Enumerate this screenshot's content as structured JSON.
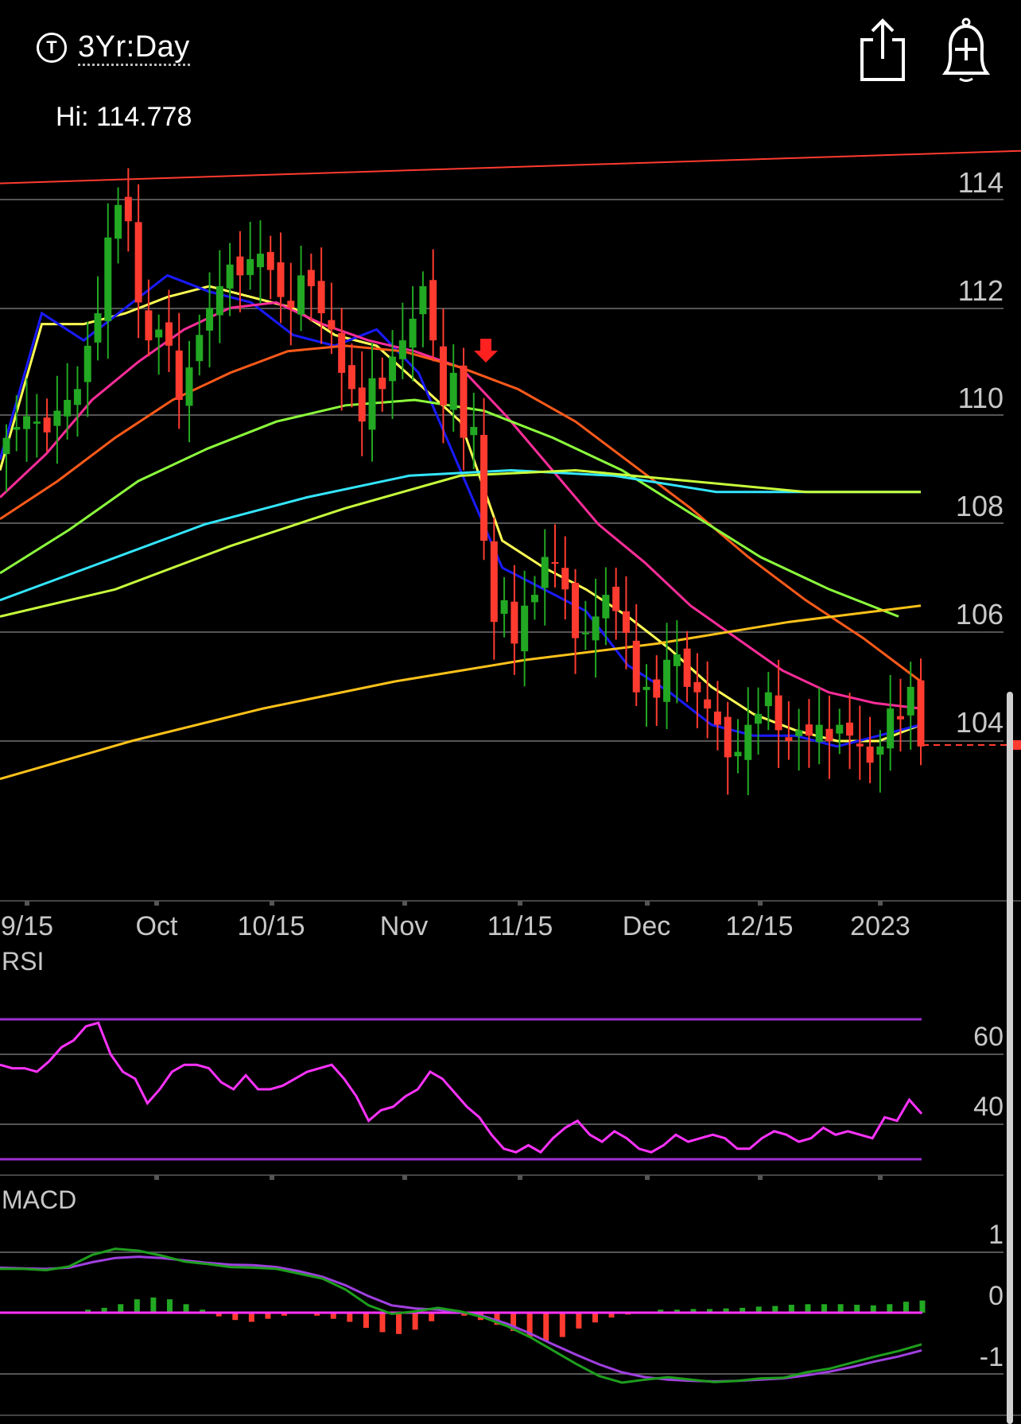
{
  "header": {
    "timeframe_icon_glyph": "T",
    "timeframe_label": "3Yr:Day",
    "share_icon": "share-icon",
    "alert_icon": "bell-plus-icon"
  },
  "price_panel": {
    "hi_label": "Hi: 114.778",
    "y_tick_labels": [
      "114",
      "112",
      "110",
      "108",
      "106",
      "104"
    ],
    "x_tick_labels": [
      "9/15",
      "Oct",
      "10/15",
      "Nov",
      "11/15",
      "Dec",
      "12/15",
      "2023"
    ],
    "last_price_marker": "dashed-red-line"
  },
  "rsi_panel": {
    "label": "RSI",
    "y_tick_labels": [
      "60",
      "40"
    ]
  },
  "macd_panel": {
    "label": "MACD",
    "y_tick_labels": [
      "1",
      "0",
      "-1"
    ]
  },
  "colors": {
    "background": "#000000",
    "up_candle": "#22a822",
    "down_candle": "#ff3b30",
    "trendline": "#ff3b30",
    "ema_fast": "#ffff55",
    "sma_fast": "#1a1aff",
    "ma_magenta": "#ff2d9a",
    "ma_orange": "#ff5a1a",
    "ma_lightgreen": "#8cff3c",
    "ma_cyan": "#33e6ff",
    "ma_yellowgreen": "#c8ff3c",
    "ma_gold": "#ffc21a",
    "rsi_line": "#ff33ff",
    "rsi_bounds": "#9b30d0",
    "macd_line": "#1e9e1e",
    "macd_signal": "#a040e0",
    "macd_zero": "#ff33ff"
  },
  "chart_data": [
    {
      "type": "candlestick",
      "title": "",
      "ylim": [
        101.5,
        115
      ],
      "y_ticks": [
        104,
        106,
        108,
        110,
        112,
        114
      ],
      "hi": 114.778,
      "x_labels": [
        "9/15",
        "Oct",
        "10/15",
        "Nov",
        "11/15",
        "Dec",
        "12/15",
        "2023"
      ],
      "candles_close": [
        109.6,
        109.8,
        110.0,
        109.9,
        109.7,
        110.1,
        110.3,
        110.5,
        111.3,
        111.9,
        113.3,
        113.9,
        113.6,
        112.1,
        111.4,
        111.6,
        111.3,
        110.3,
        110.9,
        111.5,
        112.0,
        112.4,
        112.8,
        112.6,
        112.9,
        113.0,
        112.7,
        112.2,
        112.0,
        112.6,
        112.4,
        111.9,
        111.6,
        110.8,
        110.5,
        109.9,
        110.7,
        110.5,
        111.1,
        111.4,
        111.8,
        112.4,
        111.4,
        110.2,
        110.8,
        109.6,
        109.8,
        107.7,
        106.2,
        106.6,
        105.8,
        106.5,
        106.7,
        107.4,
        107.3,
        106.8,
        105.9,
        106.0,
        106.3,
        106.7,
        106.4,
        106.0,
        104.9,
        105.0,
        104.8,
        105.5,
        105.6,
        105.0,
        104.9,
        104.6,
        104.3,
        103.7,
        103.8,
        104.3,
        104.5,
        104.9,
        104.2,
        104.0,
        104.2,
        104.1,
        104.3,
        104.0,
        104.3,
        104.1,
        103.9,
        103.6,
        103.9,
        104.6,
        104.4,
        105.0,
        103.9
      ],
      "overlay_lines": [
        {
          "color_key": "ema_fast",
          "values": [
            109.0,
            111.7,
            111.7,
            111.9,
            112.2,
            112.4,
            112.2,
            112.0,
            111.5,
            111.3,
            110.6,
            109.9,
            107.7,
            107.2,
            106.8,
            106.3,
            105.7,
            105.0,
            104.5,
            104.2,
            104.0,
            104.0,
            104.3
          ]
        },
        {
          "color_key": "sma_fast",
          "values": [
            109.2,
            111.9,
            111.4,
            112.0,
            112.6,
            112.3,
            112.1,
            111.5,
            111.3,
            111.6,
            110.8,
            109.0,
            107.2,
            106.8,
            106.4,
            105.4,
            104.9,
            104.3,
            104.1,
            104.1,
            103.9,
            104.1,
            104.3
          ]
        },
        {
          "color_key": "ma_magenta",
          "values": [
            108.5,
            109.3,
            110.3,
            111.0,
            111.6,
            112.0,
            112.1,
            111.7,
            111.4,
            111.2,
            110.9,
            110.0,
            109.0,
            108.0,
            107.3,
            106.5,
            105.9,
            105.3,
            104.9,
            104.7,
            104.6
          ]
        },
        {
          "color_key": "ma_orange",
          "values": [
            108.1,
            108.8,
            109.6,
            110.3,
            110.8,
            111.2,
            111.3,
            111.2,
            110.9,
            110.5,
            109.9,
            109.1,
            108.3,
            107.4,
            106.6,
            105.9,
            105.1
          ]
        },
        {
          "color_key": "ma_lightgreen",
          "values": [
            107.1,
            107.9,
            108.8,
            109.4,
            109.9,
            110.2,
            110.3,
            110.1,
            109.6,
            109.0,
            108.2,
            107.4,
            106.8,
            106.3
          ]
        },
        {
          "color_key": "ma_cyan",
          "values": [
            106.6,
            107.3,
            108.0,
            108.5,
            108.9,
            109.0,
            108.9,
            108.6,
            108.6,
            108.6
          ]
        },
        {
          "color_key": "ma_yellowgreen",
          "values": [
            106.3,
            106.8,
            107.6,
            108.3,
            108.9,
            109.0,
            108.8,
            108.6,
            108.6
          ]
        },
        {
          "color_key": "ma_gold",
          "values": [
            103.3,
            104.0,
            104.6,
            105.1,
            105.5,
            105.8,
            106.2,
            106.5
          ]
        },
        {
          "color_key": "trendline",
          "values": [
            114.3,
            114.9
          ]
        }
      ]
    },
    {
      "type": "line",
      "title": "RSI",
      "ylim": [
        25,
        75
      ],
      "y_ticks": [
        40,
        60
      ],
      "bounds": [
        30,
        70
      ],
      "values": [
        57,
        56,
        56,
        55,
        58,
        62,
        64,
        68,
        69,
        60,
        55,
        53,
        46,
        50,
        55,
        57,
        57,
        56,
        52,
        50,
        54,
        50,
        50,
        51,
        53,
        55,
        56,
        57,
        53,
        48,
        41,
        44,
        45,
        48,
        50,
        55,
        53,
        49,
        45,
        42,
        37,
        33,
        32,
        34,
        32,
        36,
        39,
        41,
        37,
        35,
        38,
        36,
        33,
        32,
        34,
        37,
        35,
        36,
        37,
        36,
        33,
        33,
        36,
        38,
        37,
        35,
        36,
        39,
        37,
        38,
        37,
        36,
        42,
        41,
        47,
        43
      ]
    },
    {
      "type": "bar",
      "title": "MACD",
      "ylim": [
        -1.4,
        1.4
      ],
      "y_ticks": [
        -1,
        0,
        1
      ],
      "macd": [
        0.72,
        0.72,
        0.7,
        0.76,
        0.95,
        1.05,
        1.02,
        0.94,
        0.84,
        0.8,
        0.75,
        0.74,
        0.72,
        0.64,
        0.56,
        0.38,
        0.12,
        -0.02,
        0.02,
        0.08,
        0.02,
        -0.08,
        -0.22,
        -0.4,
        -0.62,
        -0.84,
        -1.04,
        -1.15,
        -1.1,
        -1.06,
        -1.1,
        -1.14,
        -1.12,
        -1.08,
        -1.07,
        -0.98,
        -0.92,
        -0.82,
        -0.72,
        -0.63,
        -0.52
      ],
      "signal": [
        0.74,
        0.73,
        0.72,
        0.74,
        0.83,
        0.9,
        0.92,
        0.9,
        0.86,
        0.82,
        0.79,
        0.78,
        0.75,
        0.68,
        0.59,
        0.45,
        0.27,
        0.12,
        0.07,
        0.05,
        0.01,
        -0.06,
        -0.18,
        -0.34,
        -0.52,
        -0.69,
        -0.85,
        -0.98,
        -1.06,
        -1.1,
        -1.12,
        -1.13,
        -1.12,
        -1.1,
        -1.08,
        -1.03,
        -0.97,
        -0.89,
        -0.8,
        -0.72,
        -0.62
      ],
      "histogram": [
        0.02,
        0.05,
        0.08,
        0.14,
        0.22,
        0.25,
        0.22,
        0.14,
        0.05,
        -0.06,
        -0.12,
        -0.15,
        -0.1,
        -0.05,
        0,
        -0.05,
        -0.1,
        -0.15,
        -0.25,
        -0.32,
        -0.35,
        -0.28,
        -0.14,
        0.02,
        -0.05,
        -0.12,
        -0.2,
        -0.3,
        -0.4,
        -0.46,
        -0.4,
        -0.26,
        -0.16,
        -0.08,
        -0.03,
        0.02,
        0.05,
        0.05,
        0.06,
        0.06,
        0.07,
        0.08,
        0.1,
        0.11,
        0.13,
        0.14,
        0.14,
        0.14,
        0.13,
        0.12,
        0.14,
        0.18,
        0.2
      ]
    }
  ]
}
